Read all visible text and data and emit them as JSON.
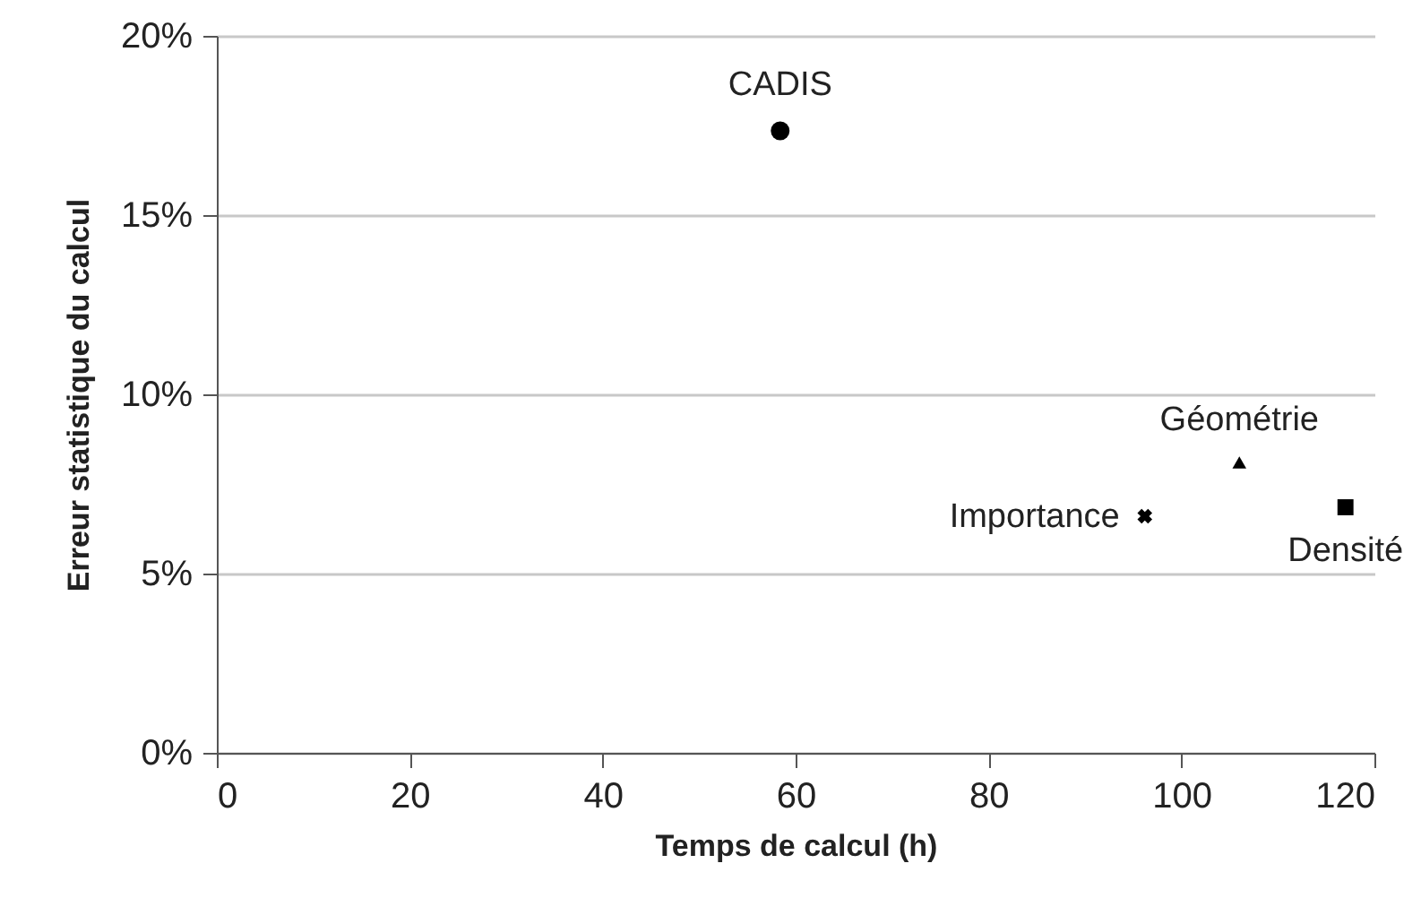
{
  "chart_data": {
    "type": "scatter",
    "xlabel": "Temps de calcul (h)",
    "ylabel": "Erreur statistique du calcul",
    "xlim": [
      0,
      120
    ],
    "xticks": [
      0,
      20,
      40,
      60,
      80,
      100,
      120
    ],
    "ylim": [
      0,
      20
    ],
    "yticks": [
      {
        "value": 0,
        "label": "0%"
      },
      {
        "value": 5,
        "label": "5%"
      },
      {
        "value": 10,
        "label": "10%"
      },
      {
        "value": 15,
        "label": "15%"
      },
      {
        "value": 20,
        "label": "20%"
      }
    ],
    "grid": "y",
    "series": [
      {
        "name": "CADIS",
        "color": "#000000",
        "marker": "circle",
        "x": [
          58.4
        ],
        "values": [
          17.35
        ]
      },
      {
        "name": "Géométrie",
        "color": "#000000",
        "marker": "triangle",
        "x": [
          106.0
        ],
        "values": [
          8.1
        ]
      },
      {
        "name": "Importance",
        "color": "#000000",
        "marker": "cross",
        "x": [
          96.2
        ],
        "values": [
          6.6
        ]
      },
      {
        "name": "Densité",
        "color": "#000000",
        "marker": "square",
        "x": [
          117.0
        ],
        "values": [
          6.85
        ]
      }
    ]
  }
}
